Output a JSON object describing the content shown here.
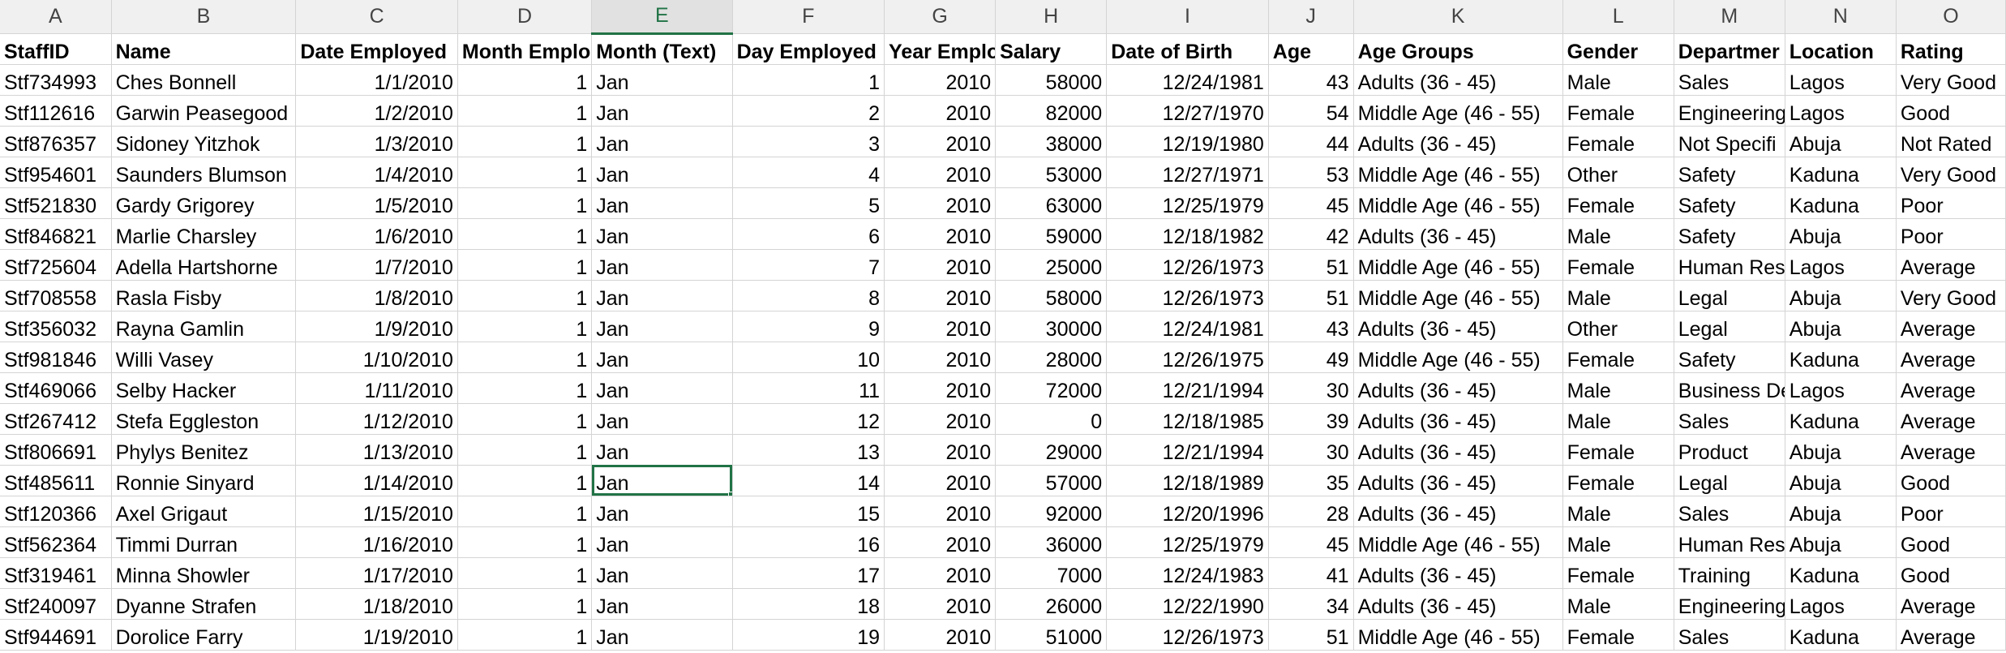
{
  "sheet": {
    "columns": [
      "A",
      "B",
      "C",
      "D",
      "E",
      "F",
      "G",
      "H",
      "I",
      "J",
      "K",
      "L",
      "M",
      "N",
      "O"
    ],
    "selected_column": "E",
    "active_cell": {
      "row": 13,
      "col": 4
    },
    "header_row": [
      "StaffID",
      "Name",
      "Date Employed",
      "Month Emplo",
      "Month (Text)",
      "Day Employed",
      "Year Emplo",
      "Salary",
      "Date of Birth",
      "Age",
      "Age Groups",
      "Gender",
      "Departmer",
      "Location",
      "Rating"
    ],
    "rows": [
      [
        "Stf734993",
        "Ches Bonnell",
        "1/1/2010",
        "1",
        "Jan",
        "1",
        "2010",
        "58000",
        "12/24/1981",
        "43",
        "Adults (36 - 45)",
        "Male",
        "Sales",
        "Lagos",
        "Very Good"
      ],
      [
        "Stf112616",
        "Garwin Peasegood",
        "1/2/2010",
        "1",
        "Jan",
        "2",
        "2010",
        "82000",
        "12/27/1970",
        "54",
        "Middle Age (46 - 55)",
        "Female",
        "Engineering",
        "Lagos",
        "Good"
      ],
      [
        "Stf876357",
        "Sidoney Yitzhok",
        "1/3/2010",
        "1",
        "Jan",
        "3",
        "2010",
        "38000",
        "12/19/1980",
        "44",
        "Adults (36 - 45)",
        "Female",
        "Not Specifi",
        "Abuja",
        "Not Rated"
      ],
      [
        "Stf954601",
        "Saunders Blumson",
        "1/4/2010",
        "1",
        "Jan",
        "4",
        "2010",
        "53000",
        "12/27/1971",
        "53",
        "Middle Age (46 - 55)",
        "Other",
        "Safety",
        "Kaduna",
        "Very Good"
      ],
      [
        "Stf521830",
        "Gardy Grigorey",
        "1/5/2010",
        "1",
        "Jan",
        "5",
        "2010",
        "63000",
        "12/25/1979",
        "45",
        "Middle Age (46 - 55)",
        "Female",
        "Safety",
        "Kaduna",
        "Poor"
      ],
      [
        "Stf846821",
        "Marlie Charsley",
        "1/6/2010",
        "1",
        "Jan",
        "6",
        "2010",
        "59000",
        "12/18/1982",
        "42",
        "Adults (36 - 45)",
        "Male",
        "Safety",
        "Abuja",
        "Poor"
      ],
      [
        "Stf725604",
        "Adella Hartshorne",
        "1/7/2010",
        "1",
        "Jan",
        "7",
        "2010",
        "25000",
        "12/26/1973",
        "51",
        "Middle Age (46 - 55)",
        "Female",
        "Human Res",
        "Lagos",
        "Average"
      ],
      [
        "Stf708558",
        "Rasla Fisby",
        "1/8/2010",
        "1",
        "Jan",
        "8",
        "2010",
        "58000",
        "12/26/1973",
        "51",
        "Middle Age (46 - 55)",
        "Male",
        "Legal",
        "Abuja",
        "Very Good"
      ],
      [
        "Stf356032",
        "Rayna Gamlin",
        "1/9/2010",
        "1",
        "Jan",
        "9",
        "2010",
        "30000",
        "12/24/1981",
        "43",
        "Adults (36 - 45)",
        "Other",
        "Legal",
        "Abuja",
        "Average"
      ],
      [
        "Stf981846",
        "Willi Vasey",
        "1/10/2010",
        "1",
        "Jan",
        "10",
        "2010",
        "28000",
        "12/26/1975",
        "49",
        "Middle Age (46 - 55)",
        "Female",
        "Safety",
        "Kaduna",
        "Average"
      ],
      [
        "Stf469066",
        "Selby Hacker",
        "1/11/2010",
        "1",
        "Jan",
        "11",
        "2010",
        "72000",
        "12/21/1994",
        "30",
        "Adults (36 - 45)",
        "Male",
        "Business De",
        "Lagos",
        "Average"
      ],
      [
        "Stf267412",
        "Stefa Eggleston",
        "1/12/2010",
        "1",
        "Jan",
        "12",
        "2010",
        "0",
        "12/18/1985",
        "39",
        "Adults (36 - 45)",
        "Male",
        "Sales",
        "Kaduna",
        "Average"
      ],
      [
        "Stf806691",
        "Phylys Benitez",
        "1/13/2010",
        "1",
        "Jan",
        "13",
        "2010",
        "29000",
        "12/21/1994",
        "30",
        "Adults (36 - 45)",
        "Female",
        "Product",
        "Abuja",
        "Average"
      ],
      [
        "Stf485611",
        "Ronnie Sinyard",
        "1/14/2010",
        "1",
        "Jan",
        "14",
        "2010",
        "57000",
        "12/18/1989",
        "35",
        "Adults (36 - 45)",
        "Female",
        "Legal",
        "Abuja",
        "Good"
      ],
      [
        "Stf120366",
        "Axel Grigaut",
        "1/15/2010",
        "1",
        "Jan",
        "15",
        "2010",
        "92000",
        "12/20/1996",
        "28",
        "Adults (36 - 45)",
        "Male",
        "Sales",
        "Abuja",
        "Poor"
      ],
      [
        "Stf562364",
        "Timmi Durran",
        "1/16/2010",
        "1",
        "Jan",
        "16",
        "2010",
        "36000",
        "12/25/1979",
        "45",
        "Middle Age (46 - 55)",
        "Male",
        "Human Res",
        "Abuja",
        "Good"
      ],
      [
        "Stf319461",
        "Minna Showler",
        "1/17/2010",
        "1",
        "Jan",
        "17",
        "2010",
        "7000",
        "12/24/1983",
        "41",
        "Adults (36 - 45)",
        "Female",
        "Training",
        "Kaduna",
        "Good"
      ],
      [
        "Stf240097",
        "Dyanne Strafen",
        "1/18/2010",
        "1",
        "Jan",
        "18",
        "2010",
        "26000",
        "12/22/1990",
        "34",
        "Adults (36 - 45)",
        "Male",
        "Engineering",
        "Lagos",
        "Average"
      ],
      [
        "Stf944691",
        "Dorolice Farry",
        "1/19/2010",
        "1",
        "Jan",
        "19",
        "2010",
        "51000",
        "12/26/1973",
        "51",
        "Middle Age (46 - 55)",
        "Female",
        "Sales",
        "Kaduna",
        "Average"
      ]
    ]
  },
  "colors": {
    "accent": "#217346",
    "gridline": "#d4d4d4",
    "header_bg": "#f0f0f0"
  }
}
